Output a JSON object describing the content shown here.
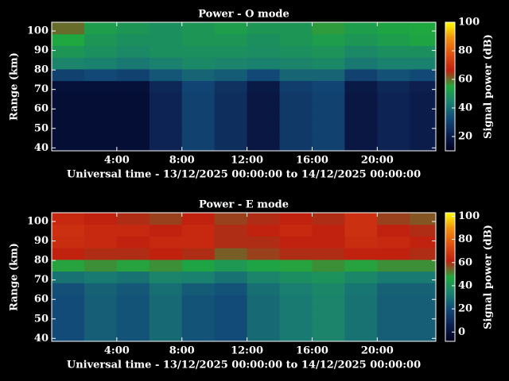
{
  "chart_data": [
    {
      "type": "heatmap",
      "title": "Power - O mode",
      "xlabel": "Universal time - 13/12/2025 00:00:00 to 14/12/2025 00:00:00",
      "ylabel": "Range (km)",
      "zlabel": "Signal power (dB)",
      "xlim": [
        0,
        23.6
      ],
      "xticks": [
        {
          "value": 4,
          "label": "4:00"
        },
        {
          "value": 8,
          "label": "8:00"
        },
        {
          "value": 12,
          "label": "12:00"
        },
        {
          "value": 16,
          "label": "16:00"
        },
        {
          "value": 20,
          "label": "20:00"
        }
      ],
      "ylim": [
        38.5,
        104.5
      ],
      "yticks": [
        40,
        50,
        60,
        70,
        80,
        90,
        100
      ],
      "zlim": [
        10,
        100
      ],
      "zticks": [
        20,
        40,
        60,
        80,
        100
      ],
      "colormap": [
        "#000020",
        "#0c2050",
        "#124a78",
        "#1a8070",
        "#20a840",
        "#c02010",
        "#e05010",
        "#f09010",
        "#ffff00"
      ],
      "xbins": [
        0,
        2,
        4,
        6,
        8,
        10,
        12,
        14,
        16,
        18,
        20,
        22,
        24
      ],
      "ybins": [
        38.5,
        44.5,
        50.5,
        56.5,
        62.5,
        68.5,
        74.5,
        80.5,
        86.5,
        92.5,
        98.5,
        104.5
      ],
      "z": [
        [
          15,
          15,
          15,
          22,
          30,
          25,
          18,
          28,
          30,
          18,
          22,
          20
        ],
        [
          15,
          15,
          15,
          22,
          30,
          25,
          18,
          28,
          30,
          18,
          22,
          20
        ],
        [
          15,
          15,
          15,
          22,
          30,
          25,
          18,
          28,
          30,
          18,
          22,
          20
        ],
        [
          15,
          15,
          15,
          22,
          30,
          25,
          18,
          28,
          30,
          18,
          22,
          20
        ],
        [
          15,
          15,
          15,
          22,
          30,
          25,
          18,
          28,
          30,
          18,
          22,
          20
        ],
        [
          16,
          16,
          16,
          23,
          31,
          26,
          19,
          29,
          31,
          19,
          23,
          21
        ],
        [
          30,
          32,
          30,
          35,
          38,
          36,
          32,
          38,
          38,
          30,
          34,
          32
        ],
        [
          45,
          44,
          42,
          44,
          46,
          45,
          44,
          45,
          46,
          42,
          44,
          44
        ],
        [
          50,
          48,
          46,
          48,
          48,
          48,
          47,
          48,
          49,
          46,
          48,
          48
        ],
        [
          55,
          50,
          48,
          48,
          50,
          50,
          48,
          50,
          52,
          50,
          52,
          54
        ],
        [
          60,
          52,
          50,
          48,
          50,
          52,
          50,
          50,
          56,
          52,
          54,
          55
        ]
      ]
    },
    {
      "type": "heatmap",
      "title": "Power - E mode",
      "xlabel": "Universal time - 13/12/2025 00:00:00 to 14/12/2025 00:00:00",
      "ylabel": "Range (km)",
      "zlabel": "Signal power (dB)",
      "xlim": [
        0,
        23.6
      ],
      "xticks": [
        {
          "value": 4,
          "label": "4:00"
        },
        {
          "value": 8,
          "label": "8:00"
        },
        {
          "value": 12,
          "label": "12:00"
        },
        {
          "value": 16,
          "label": "16:00"
        },
        {
          "value": 20,
          "label": "20:00"
        }
      ],
      "ylim": [
        38.5,
        104.5
      ],
      "yticks": [
        40,
        50,
        60,
        70,
        80,
        90,
        100
      ],
      "zlim": [
        -8,
        103
      ],
      "zticks": [
        0,
        20,
        40,
        60,
        80,
        100
      ],
      "colormap": [
        "#000020",
        "#0c2050",
        "#124a78",
        "#1a8070",
        "#20a840",
        "#c02010",
        "#e05010",
        "#f09010",
        "#ffff00"
      ],
      "xbins": [
        0,
        2,
        4,
        6,
        8,
        10,
        12,
        14,
        16,
        18,
        20,
        22,
        24
      ],
      "ybins": [
        38.5,
        44.5,
        50.5,
        56.5,
        62.5,
        68.5,
        74.5,
        80.5,
        86.5,
        92.5,
        98.5,
        104.5
      ],
      "z": [
        [
          20,
          25,
          22,
          28,
          22,
          20,
          28,
          32,
          35,
          30,
          25,
          25
        ],
        [
          20,
          25,
          22,
          28,
          22,
          20,
          28,
          32,
          35,
          30,
          25,
          25
        ],
        [
          20,
          25,
          22,
          28,
          22,
          20,
          28,
          32,
          35,
          30,
          25,
          25
        ],
        [
          20,
          25,
          22,
          28,
          22,
          20,
          28,
          32,
          35,
          30,
          25,
          25
        ],
        [
          21,
          26,
          23,
          29,
          24,
          22,
          29,
          33,
          36,
          31,
          26,
          26
        ],
        [
          30,
          32,
          30,
          35,
          34,
          30,
          35,
          38,
          40,
          36,
          32,
          32
        ],
        [
          48,
          50,
          48,
          50,
          46,
          42,
          46,
          48,
          50,
          48,
          50,
          50
        ],
        [
          62,
          60,
          60,
          62,
          60,
          55,
          58,
          60,
          60,
          62,
          62,
          60
        ],
        [
          65,
          64,
          62,
          64,
          64,
          60,
          60,
          62,
          62,
          65,
          64,
          62
        ],
        [
          66,
          64,
          64,
          62,
          64,
          60,
          62,
          64,
          62,
          66,
          62,
          60
        ],
        [
          64,
          62,
          60,
          58,
          62,
          58,
          60,
          62,
          60,
          66,
          58,
          56
        ]
      ]
    }
  ]
}
